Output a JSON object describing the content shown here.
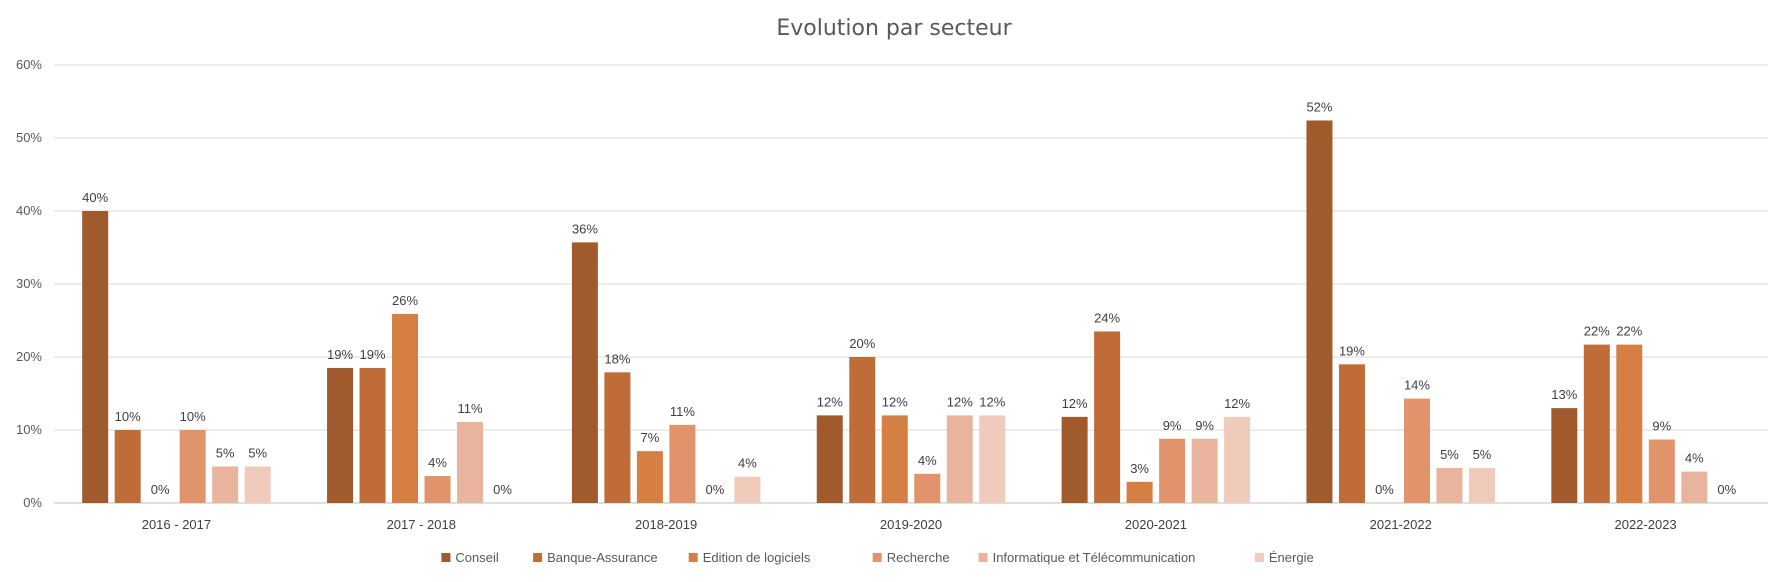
{
  "chart_data": {
    "type": "bar",
    "title": "Evolution par secteur",
    "xlabel": "",
    "ylabel": "",
    "ylim": [
      0,
      60
    ],
    "yticks": [
      "0%",
      "10%",
      "20%",
      "30%",
      "40%",
      "50%",
      "60%"
    ],
    "grid": true,
    "legend_position": "bottom",
    "categories": [
      "2016 - 2017",
      "2017 - 2018",
      "2018-2019",
      "2019-2020",
      "2020-2021",
      "2021-2022",
      "2022-2023"
    ],
    "series": [
      {
        "name": "Conseil",
        "color": "#a05a2c",
        "values": [
          40,
          18.5,
          35.7,
          12,
          11.8,
          52.4,
          13
        ],
        "labels": [
          "40%",
          "19%",
          "36%",
          "12%",
          "12%",
          "52%",
          "13%"
        ]
      },
      {
        "name": "Banque-Assurance",
        "color": "#c06c38",
        "values": [
          10,
          18.5,
          17.9,
          20,
          23.5,
          19,
          21.7
        ],
        "labels": [
          "10%",
          "19%",
          "18%",
          "20%",
          "24%",
          "19%",
          "22%"
        ]
      },
      {
        "name": "Edition de logiciels",
        "color": "#d57f45",
        "values": [
          0,
          25.9,
          7.1,
          12,
          2.9,
          0,
          21.7
        ],
        "labels": [
          "0%",
          "26%",
          "7%",
          "12%",
          "3%",
          "0%",
          "22%"
        ]
      },
      {
        "name": "Recherche",
        "color": "#e1946b",
        "values": [
          10,
          3.7,
          10.7,
          4,
          8.8,
          14.3,
          8.7
        ],
        "labels": [
          "10%",
          "4%",
          "11%",
          "4%",
          "9%",
          "14%",
          "9%"
        ]
      },
      {
        "name": "Informatique et Télécommunication",
        "color": "#e8b49d",
        "values": [
          5,
          11.1,
          0,
          12,
          8.8,
          4.8,
          4.3
        ],
        "labels": [
          "5%",
          "11%",
          "0%",
          "12%",
          "9%",
          "5%",
          "4%"
        ]
      },
      {
        "name": "Énergie",
        "color": "#f0cbbc",
        "values": [
          5,
          0,
          3.6,
          12,
          11.8,
          4.8,
          0
        ],
        "labels": [
          "5%",
          "0%",
          "4%",
          "12%",
          "12%",
          "5%",
          "0%"
        ]
      }
    ]
  }
}
